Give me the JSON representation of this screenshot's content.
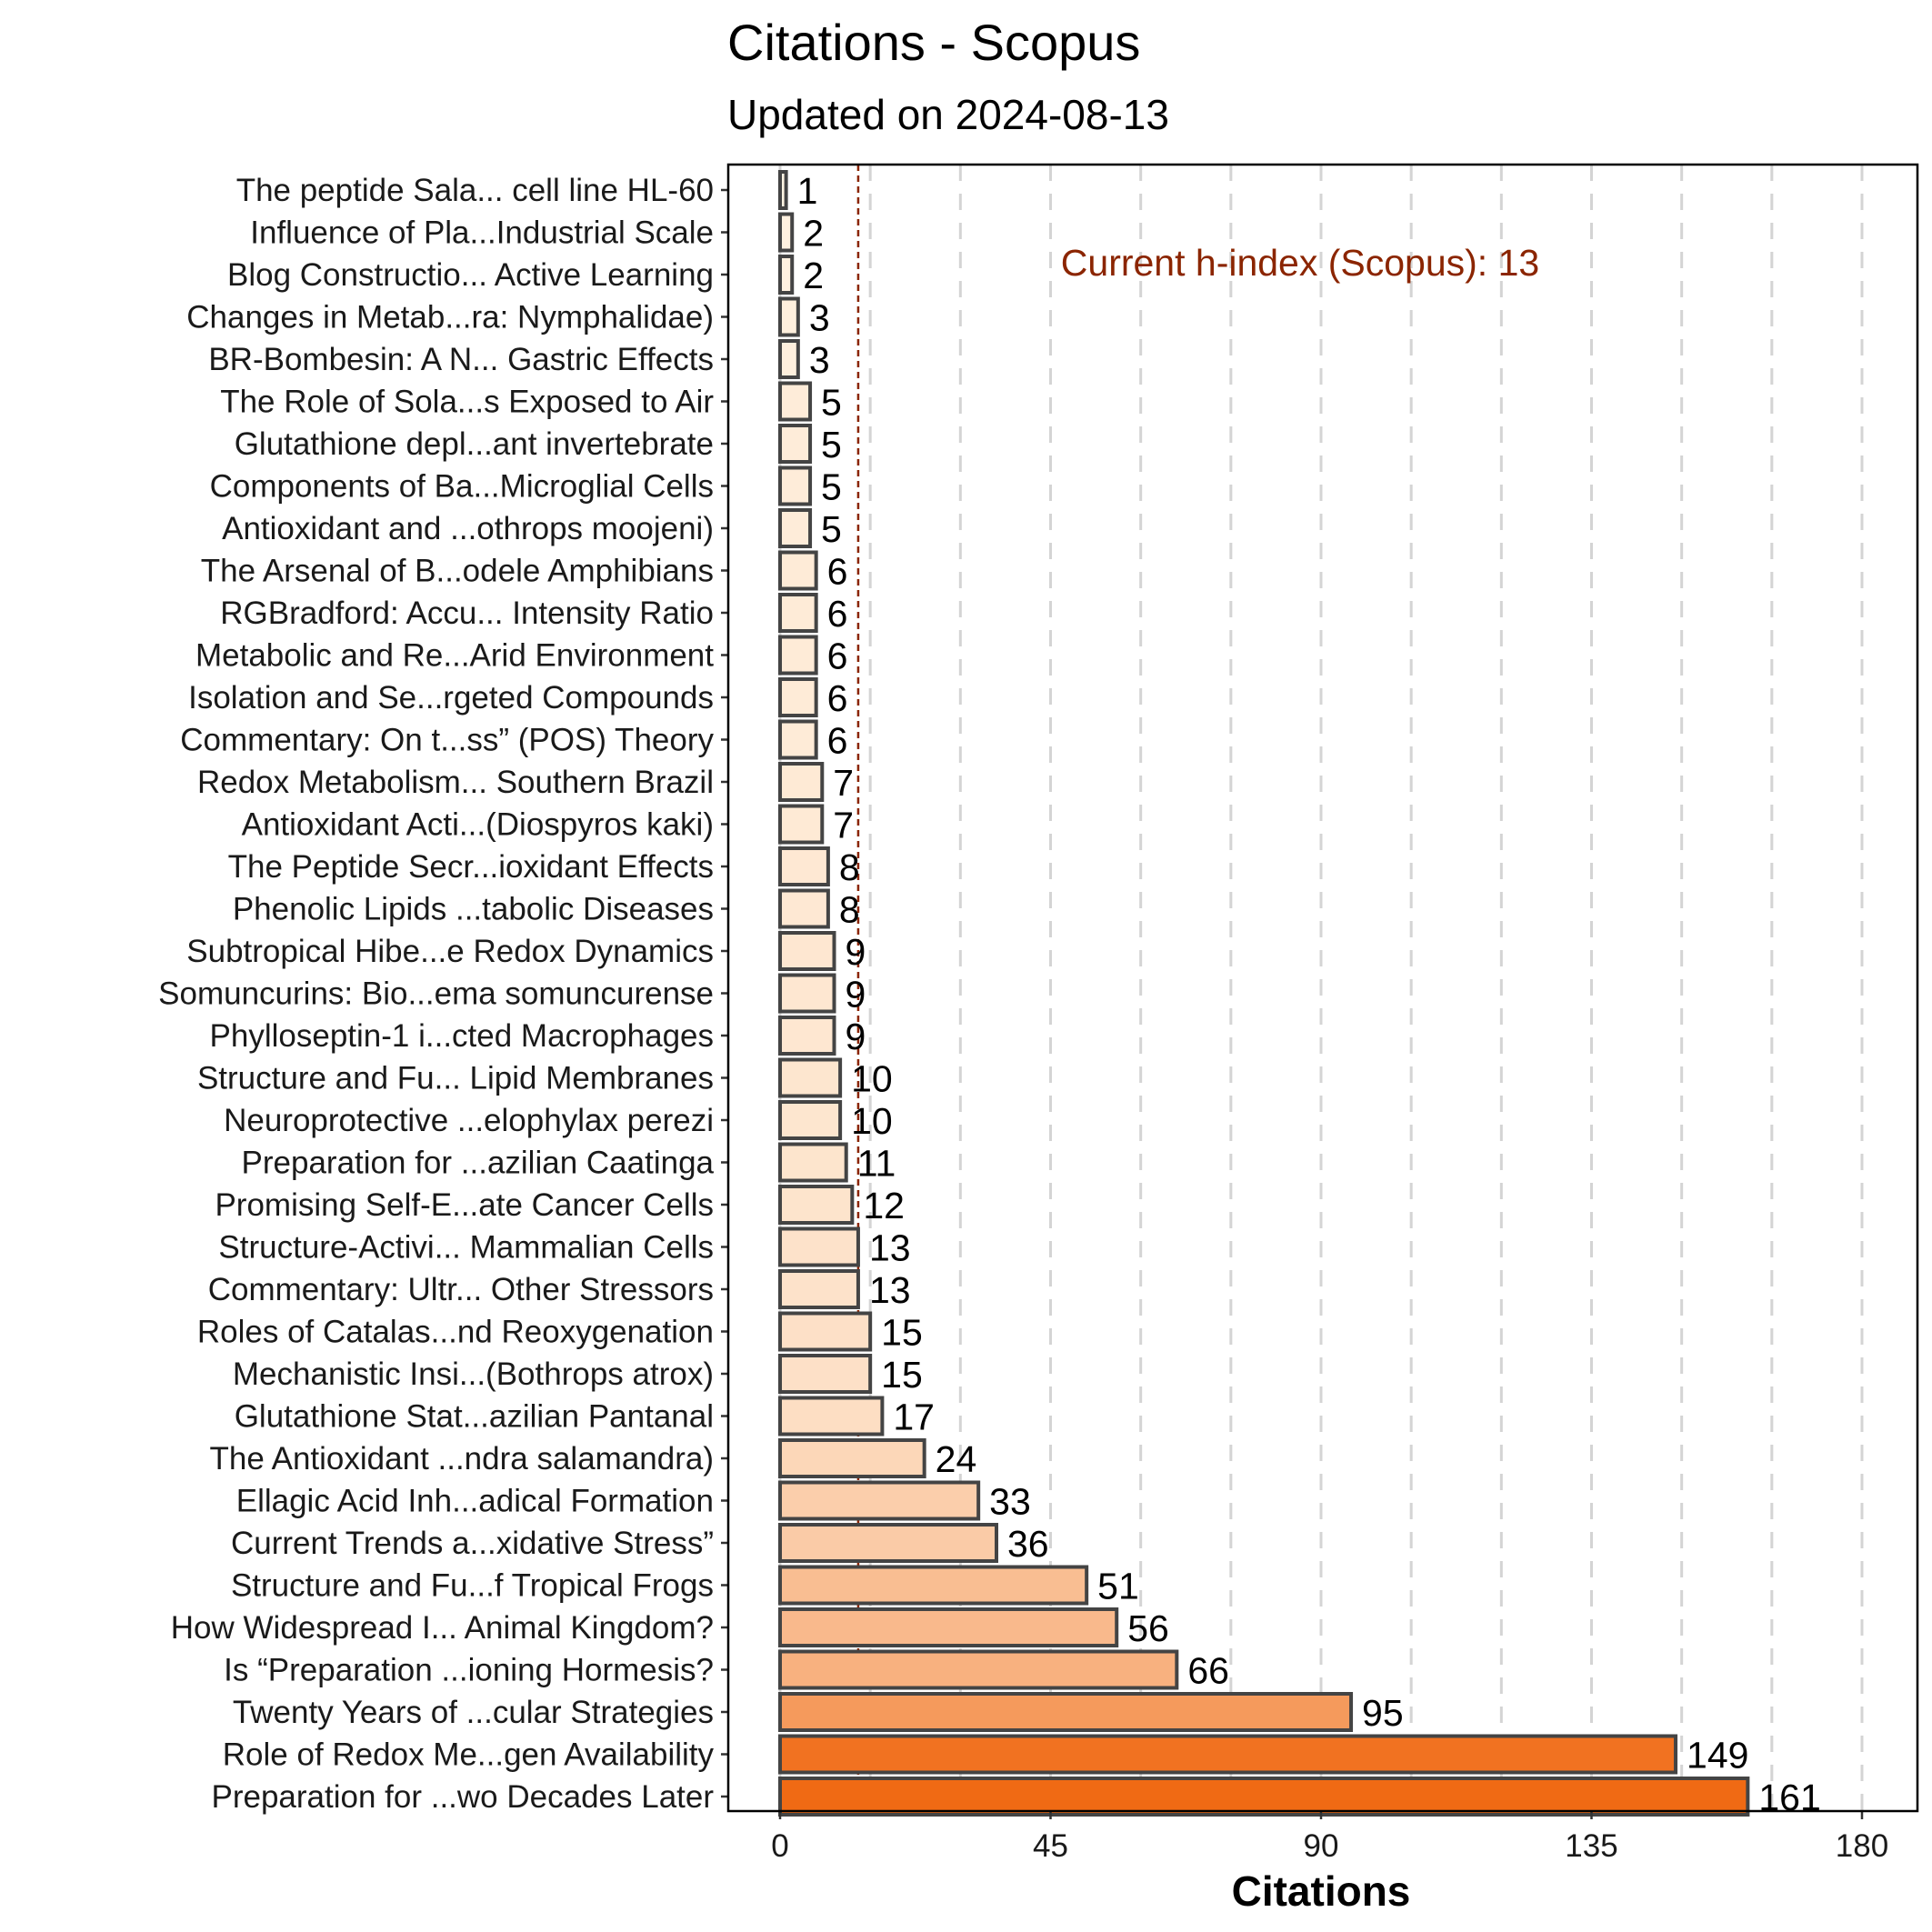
{
  "chart_data": {
    "type": "bar",
    "orientation": "horizontal",
    "title": "Citations - Scopus",
    "subtitle": "Updated on 2024-08-13",
    "xlabel": "Citations",
    "ylabel": "",
    "xlim": [
      0,
      180
    ],
    "xticks": [
      0,
      45,
      90,
      135,
      180
    ],
    "grid": "vertical dashed",
    "h_index": 13,
    "annotation": "Current h-index (Scopus): 13",
    "annotation_color": "#8B2500",
    "bar_edge_color": "#444444",
    "color_low": "#FFF5E6",
    "color_high": "#F06A14",
    "categories": [
      "The peptide Sala... cell line HL-60",
      "Influence of Pla...Industrial Scale",
      "Blog Constructio... Active Learning",
      "Changes in Metab...ra: Nymphalidae)",
      "BR-Bombesin: A N... Gastric Effects",
      "The Role of Sola...s Exposed to Air",
      "Glutathione depl...ant invertebrate",
      "Components of Ba...Microglial Cells",
      "Antioxidant and ...othrops moojeni)",
      "The Arsenal of B...odele Amphibians",
      "RGBradford: Accu... Intensity Ratio",
      "Metabolic and Re...Arid Environment",
      "Isolation and Se...rgeted Compounds",
      "Commentary: On t...ss” (POS) Theory",
      "Redox Metabolism... Southern Brazil",
      "Antioxidant Acti...(Diospyros kaki)",
      "The Peptide Secr...ioxidant Effects",
      "Phenolic Lipids ...tabolic Diseases",
      "Subtropical Hibe...e Redox Dynamics",
      "Somuncurins: Bio...ema somuncurense",
      "Phylloseptin-1 i...cted Macrophages",
      "Structure and Fu... Lipid Membranes",
      "Neuroprotective ...elophylax perezi",
      "Preparation for ...azilian Caatinga",
      "Promising Self-E...ate Cancer Cells",
      "Structure-Activi... Mammalian Cells",
      "Commentary: Ultr... Other Stressors",
      "Roles of Catalas...nd Reoxygenation",
      "Mechanistic Insi...(Bothrops atrox)",
      "Glutathione Stat...azilian Pantanal",
      "The Antioxidant ...ndra salamandra)",
      "Ellagic Acid Inh...adical Formation",
      "Current Trends a...xidative Stress”",
      "Structure and Fu...f Tropical Frogs",
      "How Widespread I... Animal Kingdom?",
      "Is “Preparation ...ioning Hormesis?",
      "Twenty Years of ...cular Strategies",
      "Role of Redox Me...gen Availability",
      "Preparation for ...wo Decades Later"
    ],
    "values": [
      1,
      2,
      2,
      3,
      3,
      5,
      5,
      5,
      5,
      6,
      6,
      6,
      6,
      6,
      7,
      7,
      8,
      8,
      9,
      9,
      9,
      10,
      10,
      11,
      12,
      13,
      13,
      15,
      15,
      17,
      24,
      33,
      36,
      51,
      56,
      66,
      95,
      149,
      161
    ]
  }
}
